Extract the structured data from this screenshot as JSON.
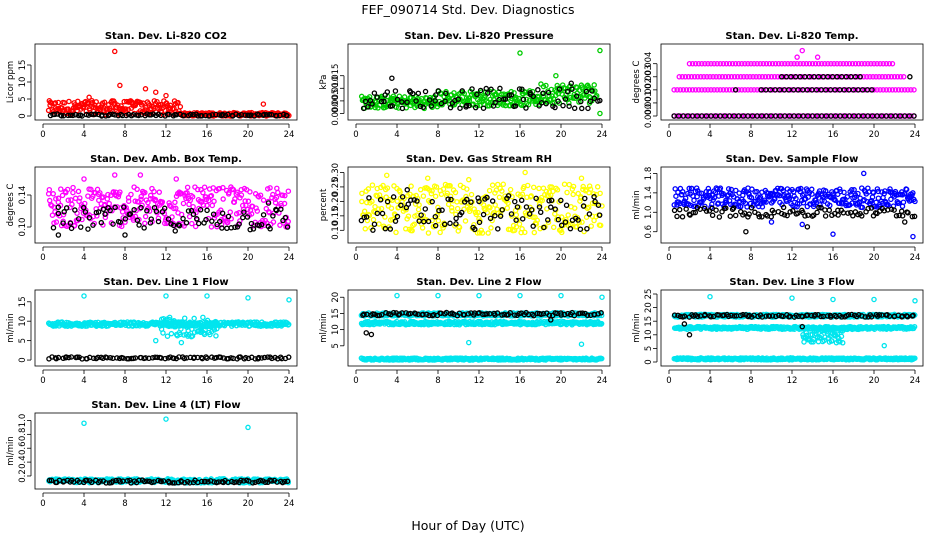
{
  "figure": {
    "title": "FEF_090714  Std. Dev. Diagnostics",
    "xlabel": "Hour of Day (UTC)"
  },
  "chart_data": [
    {
      "type": "scatter",
      "title": "Stan. Dev. Li-820 CO2",
      "ylabel": "Licor ppm",
      "xlim": [
        0,
        24
      ],
      "ylim": [
        0,
        20
      ],
      "xticks": [
        0,
        4,
        8,
        12,
        16,
        20,
        24
      ],
      "yticks": [
        0,
        5,
        10,
        15
      ],
      "ytick_labels": [
        "0",
        "5",
        "10",
        "15"
      ],
      "series": [
        {
          "color": "#ff0000",
          "clusters": [
            {
              "x": [
                0.5,
                13.5
              ],
              "y": [
                0.4,
                4.5
              ]
            },
            {
              "x": [
                13.5,
                24
              ],
              "y": [
                0,
                1
              ]
            }
          ],
          "outliers": [
            [
              7,
              19
            ],
            [
              7.5,
              9
            ],
            [
              10,
              8
            ],
            [
              12,
              6
            ],
            [
              21.5,
              3.5
            ],
            [
              4.5,
              5.5
            ],
            [
              11,
              7
            ]
          ]
        },
        {
          "color": "#000000",
          "clusters": [
            {
              "x": [
                0.5,
                24
              ],
              "y": [
                0,
                0.6
              ]
            }
          ],
          "outliers": []
        }
      ]
    },
    {
      "type": "scatter",
      "title": "Stan. Dev. Li-820 Pressure",
      "ylabel": "kPa",
      "xlim": [
        0,
        24
      ],
      "ylim": [
        -0.001,
        0.026
      ],
      "xticks": [
        0,
        4,
        8,
        12,
        16,
        20,
        24
      ],
      "yticks": [
        0,
        0.005,
        0.01,
        0.015
      ],
      "ytick_labels": [
        "0.000",
        "0.005",
        "0.010",
        "0.015"
      ],
      "series": [
        {
          "color": "#00cc00",
          "clusters": [
            {
              "x": [
                0.5,
                8
              ],
              "y": [
                0.002,
                0.007
              ]
            },
            {
              "x": [
                8,
                18
              ],
              "y": [
                0.003,
                0.009
              ]
            },
            {
              "x": [
                18,
                23.5
              ],
              "y": [
                0.004,
                0.012
              ]
            }
          ],
          "outliers": [
            [
              16,
              0.024
            ],
            [
              23.8,
              0.025
            ],
            [
              19.5,
              0.015
            ],
            [
              23.8,
              0.0
            ]
          ]
        },
        {
          "color": "#000000",
          "clusters": [
            {
              "x": [
                0.5,
                24
              ],
              "y": [
                0.002,
                0.01
              ]
            }
          ],
          "outliers": [
            [
              3.5,
              0.014
            ],
            [
              21,
              0.012
            ]
          ]
        }
      ]
    },
    {
      "type": "scatter",
      "title": "Stan. Dev. Li-820 Temp.",
      "ylabel": "degrees C",
      "xlim": [
        0,
        24
      ],
      "ylim": [
        0,
        0.0052
      ],
      "xticks": [
        0,
        4,
        8,
        12,
        16,
        20,
        24
      ],
      "yticks": [
        0,
        0.001,
        0.002,
        0.003,
        0.004
      ],
      "ytick_labels": [
        "0.000",
        "0.001",
        "0.002",
        "0.003",
        "0.004"
      ],
      "series": [
        {
          "color": "#ff00ff",
          "levels": [
            0,
            0.002,
            0.003,
            0.004
          ],
          "level_ranges": [
            [
              0.5,
              24
            ],
            [
              0.5,
              24
            ],
            [
              1,
              23
            ],
            [
              2,
              22
            ]
          ],
          "outliers": [
            [
              13,
              0.005
            ],
            [
              14.5,
              0.0045
            ],
            [
              12.5,
              0.0045
            ]
          ]
        },
        {
          "color": "#000000",
          "levels": [
            0,
            0.002,
            0.003
          ],
          "level_ranges": [
            [
              0.5,
              24
            ],
            [
              9,
              20
            ],
            [
              11,
              19
            ]
          ],
          "outliers": [
            [
              23.5,
              0.003
            ],
            [
              6.5,
              0.002
            ]
          ]
        }
      ]
    },
    {
      "type": "scatter",
      "title": "Stan. Dev. Amb. Box Temp.",
      "ylabel": "degrees C",
      "xlim": [
        0,
        24
      ],
      "ylim": [
        0.085,
        0.17
      ],
      "xticks": [
        0,
        4,
        8,
        12,
        16,
        20,
        24
      ],
      "yticks": [
        0.1,
        0.14
      ],
      "ytick_labels": [
        "0.10",
        "0.14"
      ],
      "series": [
        {
          "color": "#ff00ff",
          "clusters": [
            {
              "x": [
                0.5,
                24
              ],
              "y": [
                0.1,
                0.15
              ]
            }
          ],
          "outliers": [
            [
              7,
              0.165
            ],
            [
              9.5,
              0.165
            ],
            [
              4,
              0.16
            ],
            [
              13,
              0.16
            ]
          ]
        },
        {
          "color": "#000000",
          "clusters": [
            {
              "x": [
                1,
                24
              ],
              "y": [
                0.095,
                0.125
              ]
            }
          ],
          "outliers": [
            [
              8,
              0.09
            ],
            [
              1.5,
              0.09
            ],
            [
              22,
              0.13
            ]
          ]
        }
      ]
    },
    {
      "type": "scatter",
      "title": "Stan. Dev. Gas Stream RH",
      "ylabel": "percent",
      "xlim": [
        0,
        24
      ],
      "ylim": [
        0.07,
        0.305
      ],
      "xticks": [
        0,
        4,
        8,
        12,
        16,
        20,
        24
      ],
      "yticks": [
        0.1,
        0.15,
        0.2,
        0.25,
        0.3
      ],
      "ytick_labels": [
        "0.10",
        "0.15",
        "0.20",
        "0.25",
        "0.30"
      ],
      "series": [
        {
          "color": "#ffff00",
          "clusters": [
            {
              "x": [
                0.5,
                24
              ],
              "y": [
                0.09,
                0.26
              ]
            }
          ],
          "outliers": [
            [
              3,
              0.29
            ],
            [
              7,
              0.28
            ],
            [
              11,
              0.275
            ],
            [
              16.5,
              0.3
            ],
            [
              22,
              0.28
            ]
          ]
        },
        {
          "color": "#000000",
          "clusters": [
            {
              "x": [
                0.5,
                24
              ],
              "y": [
                0.1,
                0.22
              ]
            }
          ],
          "outliers": [
            [
              5,
              0.24
            ],
            [
              12,
              0.2
            ],
            [
              19,
              0.18
            ]
          ]
        }
      ]
    },
    {
      "type": "scatter",
      "title": "Stan. Dev. Sample Flow",
      "ylabel": "ml/min",
      "xlim": [
        0,
        24
      ],
      "ylim": [
        0.45,
        1.85
      ],
      "xticks": [
        0,
        4,
        8,
        12,
        16,
        20,
        24
      ],
      "yticks": [
        0.6,
        1.0,
        1.4,
        1.8
      ],
      "ytick_labels": [
        "0.6",
        "1.0",
        "1.4",
        "1.8"
      ],
      "series": [
        {
          "color": "#0000ff",
          "clusters": [
            {
              "x": [
                0.5,
                24
              ],
              "y": [
                1.1,
                1.5
              ]
            }
          ],
          "outliers": [
            [
              19,
              1.8
            ],
            [
              23.8,
              0.5
            ],
            [
              16,
              0.55
            ],
            [
              10,
              0.8
            ],
            [
              13,
              0.75
            ]
          ]
        },
        {
          "color": "#000000",
          "clusters": [
            {
              "x": [
                0.5,
                24
              ],
              "y": [
                0.9,
                1.1
              ]
            }
          ],
          "outliers": [
            [
              7.5,
              0.6
            ],
            [
              13.5,
              0.7
            ],
            [
              23,
              0.8
            ]
          ]
        }
      ]
    },
    {
      "type": "scatter",
      "title": "Stan. Dev. Line 1 Flow",
      "ylabel": "ml/min",
      "xlim": [
        0,
        24
      ],
      "ylim": [
        -0.5,
        17
      ],
      "xticks": [
        0,
        4,
        8,
        12,
        16,
        20,
        24
      ],
      "yticks": [
        0,
        5,
        10,
        15
      ],
      "ytick_labels": [
        "0",
        "5",
        "10",
        "15"
      ],
      "series": [
        {
          "color": "#00e5ee",
          "clusters": [
            {
              "x": [
                0.5,
                24
              ],
              "y": [
                8.7,
                9.8
              ]
            },
            {
              "x": [
                11.5,
                17
              ],
              "y": [
                6,
                11
              ]
            }
          ],
          "outliers": [
            [
              4,
              16.5
            ],
            [
              12,
              16.5
            ],
            [
              16,
              16.5
            ],
            [
              20,
              16
            ],
            [
              24,
              15.5
            ],
            [
              13.5,
              4.5
            ],
            [
              11,
              5
            ]
          ]
        },
        {
          "color": "#000000",
          "clusters": [
            {
              "x": [
                0.5,
                24
              ],
              "y": [
                0.3,
                0.8
              ]
            }
          ],
          "outliers": []
        }
      ]
    },
    {
      "type": "scatter",
      "title": "Stan. Dev. Line 2 Flow",
      "ylabel": "ml/min",
      "xlim": [
        0,
        24
      ],
      "ylim": [
        0,
        21
      ],
      "xticks": [
        0,
        4,
        8,
        12,
        16,
        20,
        24
      ],
      "yticks": [
        5,
        10,
        15,
        20
      ],
      "ytick_labels": [
        "5",
        "10",
        "15",
        "20"
      ],
      "series": [
        {
          "color": "#00e5ee",
          "clusters": [
            {
              "x": [
                0.5,
                24
              ],
              "y": [
                11.5,
                12.5
              ]
            },
            {
              "x": [
                0.5,
                24
              ],
              "y": [
                0.6,
                1.2
              ]
            },
            {
              "x": [
                0.5,
                24
              ],
              "y": [
                14.2,
                15.2
              ]
            }
          ],
          "outliers": [
            [
              4,
              20.5
            ],
            [
              8,
              20.5
            ],
            [
              12,
              20.5
            ],
            [
              16,
              20.5
            ],
            [
              20,
              20.5
            ],
            [
              24,
              20
            ],
            [
              11,
              6
            ],
            [
              22,
              5.5
            ]
          ]
        },
        {
          "color": "#000000",
          "clusters": [
            {
              "x": [
                0.5,
                24
              ],
              "y": [
                14.3,
                15.3
              ]
            }
          ],
          "outliers": [
            [
              1,
              9
            ],
            [
              1.5,
              8.5
            ],
            [
              19,
              13
            ]
          ]
        }
      ]
    },
    {
      "type": "scatter",
      "title": "Stan. Dev. Line 3 Flow",
      "ylabel": "ml/min",
      "xlim": [
        0,
        24
      ],
      "ylim": [
        0,
        25
      ],
      "xticks": [
        0,
        4,
        8,
        12,
        16,
        20,
        24
      ],
      "yticks": [
        0,
        5,
        10,
        15,
        20,
        25
      ],
      "ytick_labels": [
        "0",
        "5",
        "10",
        "15",
        "20",
        "25"
      ],
      "series": [
        {
          "color": "#00e5ee",
          "clusters": [
            {
              "x": [
                0.5,
                24
              ],
              "y": [
                12,
                13
              ]
            },
            {
              "x": [
                0.5,
                24
              ],
              "y": [
                0.8,
                1.5
              ]
            },
            {
              "x": [
                0.5,
                24
              ],
              "y": [
                16.5,
                17.5
              ]
            },
            {
              "x": [
                13,
                17
              ],
              "y": [
                7,
                12
              ]
            }
          ],
          "outliers": [
            [
              4,
              24
            ],
            [
              12,
              23.5
            ],
            [
              16,
              23
            ],
            [
              20,
              23
            ],
            [
              24,
              22.5
            ],
            [
              21,
              6
            ]
          ]
        },
        {
          "color": "#000000",
          "clusters": [
            {
              "x": [
                0.5,
                24
              ],
              "y": [
                16.5,
                17.5
              ]
            }
          ],
          "outliers": [
            [
              1.5,
              14
            ],
            [
              2,
              10
            ],
            [
              13,
              13
            ]
          ]
        }
      ]
    },
    {
      "type": "scatter",
      "title": "Stan. Dev. Line 4 (LT) Flow",
      "ylabel": "ml/min",
      "xlim": [
        0,
        24
      ],
      "ylim": [
        0.07,
        1.05
      ],
      "xticks": [
        0,
        4,
        8,
        12,
        16,
        20,
        24
      ],
      "yticks": [
        0.2,
        0.4,
        0.6,
        0.8,
        1.0
      ],
      "ytick_labels": [
        "0.2",
        "0.4",
        "0.6",
        "0.8",
        "1.0"
      ],
      "series": [
        {
          "color": "#00e5ee",
          "clusters": [
            {
              "x": [
                0.5,
                24
              ],
              "y": [
                0.1,
                0.16
              ]
            }
          ],
          "outliers": [
            [
              4,
              0.96
            ],
            [
              12,
              1.02
            ],
            [
              20,
              0.9
            ]
          ]
        },
        {
          "color": "#000000",
          "clusters": [
            {
              "x": [
                0.5,
                24
              ],
              "y": [
                0.1,
                0.14
              ]
            }
          ],
          "outliers": []
        }
      ]
    }
  ]
}
